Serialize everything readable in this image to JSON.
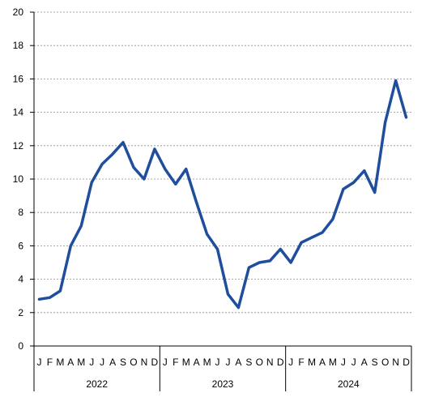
{
  "chart_data": {
    "type": "line",
    "title": "",
    "xlabel": "",
    "ylabel": "",
    "ylim": [
      0,
      20
    ],
    "yticks": [
      0,
      2,
      4,
      6,
      8,
      10,
      12,
      14,
      16,
      18,
      20
    ],
    "grid": "horizontal dashed",
    "legend": "none",
    "month_labels": [
      "J",
      "F",
      "M",
      "A",
      "M",
      "J",
      "J",
      "A",
      "S",
      "O",
      "N",
      "D"
    ],
    "years": [
      "2022",
      "2023",
      "2024"
    ],
    "series": [
      {
        "color": "#1f4e9c",
        "values": [
          2.8,
          2.9,
          3.3,
          6.0,
          7.2,
          9.8,
          10.9,
          11.5,
          12.2,
          10.7,
          10.0,
          11.8,
          10.6,
          9.7,
          10.6,
          8.6,
          6.7,
          5.8,
          3.1,
          2.3,
          4.7,
          5.0,
          5.1,
          5.8,
          5.0,
          6.2,
          6.5,
          6.8,
          7.6,
          9.4,
          9.8,
          10.5,
          9.2,
          13.4,
          15.9,
          13.7
        ]
      }
    ]
  }
}
